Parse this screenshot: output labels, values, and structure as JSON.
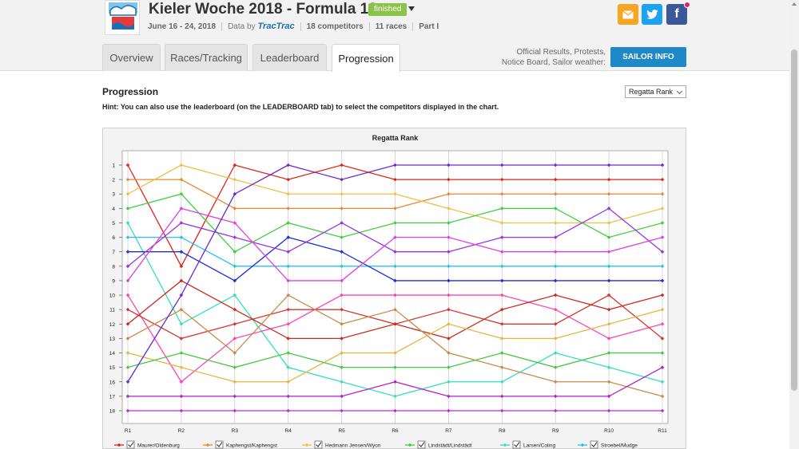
{
  "header": {
    "title": "Kieler Woche 2018 - Formula 18",
    "status_badge": "finished",
    "dates": "June 16 - 24, 2018",
    "data_by_label": "Data by",
    "data_by_brand": "TracTrac",
    "competitors": "18 competitors",
    "races": "11 races",
    "part": "Part I"
  },
  "share": {
    "mail_icon": "envelope-icon",
    "twitter_icon": "twitter-icon",
    "facebook_letter": "f"
  },
  "tabs": [
    "Overview",
    "Races/Tracking",
    "Leaderboard",
    "Progression"
  ],
  "active_tab": "Progression",
  "official_text": [
    "Official Results, Protests,",
    "Notice Board, Sailor weather:"
  ],
  "sailor_info_button": "SAILOR INFO",
  "section": {
    "title": "Progression",
    "hint": "Hint: You can also use the leaderboard (on the LEADERBOARD tab) to select the competitors displayed in the chart."
  },
  "rank_select": {
    "value": "Regatta Rank"
  },
  "chart_data": {
    "type": "line",
    "title": "Regatta Rank",
    "x": [
      "R1",
      "R2",
      "R3",
      "R4",
      "R5",
      "R6",
      "R7",
      "R8",
      "R9",
      "R10",
      "R11"
    ],
    "y_ticks": [
      1,
      2,
      3,
      4,
      5,
      6,
      7,
      8,
      9,
      10,
      11,
      12,
      13,
      14,
      15,
      16,
      17,
      18
    ],
    "ylim": [
      18,
      1
    ],
    "y_reversed": true,
    "grid": true,
    "legend_position": "bottom",
    "series": [
      {
        "name": "Maurer/Oldenburg",
        "color": "#e2231a",
        "values": [
          1,
          8,
          1,
          2,
          1,
          2,
          2,
          2,
          2,
          2,
          2
        ],
        "show_in_legend": true
      },
      {
        "name": "Kaphengst/Kaphengst",
        "color": "#e8892f",
        "values": [
          2,
          2,
          4,
          4,
          4,
          4,
          3,
          3,
          3,
          3,
          3
        ],
        "show_in_legend": true
      },
      {
        "name": "Hedmann Jensen/Wyon",
        "color": "#f0c040",
        "values": [
          3,
          1,
          2,
          3,
          3,
          3,
          4,
          5,
          5,
          5,
          4
        ],
        "show_in_legend": true
      },
      {
        "name": "Lindstädt/Lindstädt",
        "color": "#3bd13b",
        "values": [
          4,
          3,
          7,
          5,
          6,
          5,
          5,
          4,
          4,
          6,
          5
        ],
        "show_in_legend": true
      },
      {
        "name": "Larsen/Coling",
        "color": "#33e0b8",
        "values": [
          5,
          12,
          10,
          15,
          16,
          17,
          16,
          16,
          14,
          15,
          16
        ],
        "show_in_legend": true
      },
      {
        "name": "Stroebel/Mudge",
        "color": "#28c0f0",
        "values": [
          6,
          6,
          8,
          8,
          8,
          8,
          8,
          8,
          8,
          8,
          8
        ],
        "show_in_legend": true
      },
      {
        "name": "",
        "color": "#1f2fd6",
        "values": [
          7,
          7,
          9,
          6,
          7,
          9,
          9,
          9,
          9,
          9,
          9
        ],
        "show_in_legend": false
      },
      {
        "name": "",
        "color": "#a030e0",
        "values": [
          8,
          5,
          6,
          7,
          5,
          7,
          7,
          6,
          6,
          4,
          7
        ],
        "show_in_legend": false
      },
      {
        "name": "",
        "color": "#e040e0",
        "values": [
          9,
          4,
          5,
          9,
          9,
          6,
          6,
          7,
          7,
          7,
          6
        ],
        "show_in_legend": false
      },
      {
        "name": "",
        "color": "#ff44b0",
        "values": [
          10,
          16,
          13,
          12,
          10,
          10,
          10,
          10,
          11,
          13,
          12
        ],
        "show_in_legend": false
      },
      {
        "name": "",
        "color": "#d8362f",
        "values": [
          11,
          13,
          12,
          11,
          11,
          12,
          11,
          12,
          12,
          10,
          13
        ],
        "show_in_legend": false
      },
      {
        "name": "",
        "color": "#cc2a1f",
        "values": [
          12,
          9,
          11,
          13,
          13,
          12,
          13,
          11,
          10,
          11,
          10
        ],
        "show_in_legend": false
      },
      {
        "name": "",
        "color": "#c98a4a",
        "values": [
          13,
          11,
          14,
          10,
          12,
          11,
          14,
          15,
          16,
          16,
          17
        ],
        "show_in_legend": false
      },
      {
        "name": "",
        "color": "#e8b440",
        "values": [
          14,
          15,
          16,
          16,
          14,
          14,
          12,
          13,
          13,
          12,
          11
        ],
        "show_in_legend": false
      },
      {
        "name": "",
        "color": "#44c844",
        "values": [
          15,
          14,
          15,
          14,
          15,
          15,
          15,
          14,
          15,
          14,
          14
        ],
        "show_in_legend": false
      },
      {
        "name": "",
        "color": "#6a2ad0",
        "values": [
          16,
          10,
          3,
          1,
          2,
          1,
          1,
          1,
          1,
          1,
          1
        ],
        "show_in_legend": false
      },
      {
        "name": "",
        "color": "#b01fd0",
        "values": [
          17,
          17,
          17,
          17,
          17,
          16,
          17,
          17,
          17,
          17,
          15
        ],
        "show_in_legend": false
      },
      {
        "name": "",
        "color": "#c02ad8",
        "values": [
          18,
          18,
          18,
          18,
          18,
          18,
          18,
          18,
          18,
          18,
          18
        ],
        "show_in_legend": false
      }
    ]
  }
}
